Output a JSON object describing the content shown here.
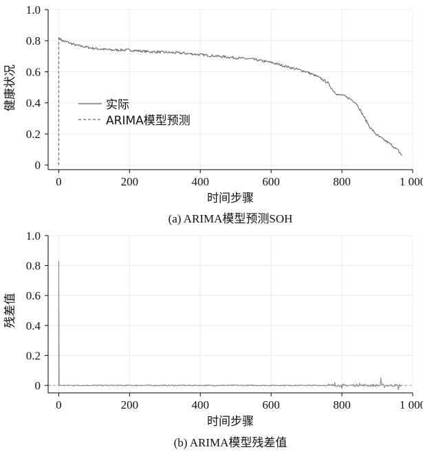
{
  "chart_data": [
    {
      "type": "line",
      "caption": "(a)  ARIMA模型预测SOH",
      "xlabel": "时间步骤",
      "ylabel": "健康状况",
      "xlim": [
        -30,
        1000
      ],
      "ylim": [
        -0.03,
        1.0
      ],
      "xticks": [
        0,
        200,
        400,
        600,
        800,
        1000
      ],
      "xtick_labels": [
        "0",
        "200",
        "400",
        "600",
        "800",
        "1 000"
      ],
      "yticks": [
        0,
        0.2,
        0.4,
        0.6,
        0.8,
        1.0
      ],
      "ytick_labels": [
        "0",
        "0.2",
        "0.4",
        "0.6",
        "0.8",
        "1.0"
      ],
      "grid": true,
      "legend_position": "middle-left",
      "series": [
        {
          "name": "实际",
          "style": "solid",
          "color": "#666666",
          "x": [
            0,
            10,
            25,
            50,
            75,
            100,
            150,
            200,
            250,
            300,
            350,
            400,
            450,
            500,
            550,
            600,
            650,
            700,
            730,
            760,
            775,
            790,
            800,
            820,
            840,
            860,
            880,
            900,
            920,
            940,
            960,
            970
          ],
          "y": [
            0.82,
            0.8,
            0.79,
            0.77,
            0.76,
            0.75,
            0.74,
            0.74,
            0.73,
            0.725,
            0.72,
            0.71,
            0.7,
            0.69,
            0.68,
            0.66,
            0.63,
            0.6,
            0.57,
            0.53,
            0.48,
            0.45,
            0.45,
            0.43,
            0.4,
            0.32,
            0.24,
            0.19,
            0.16,
            0.13,
            0.09,
            0.06
          ]
        },
        {
          "name": "ARIMA模型预测",
          "style": "dashed",
          "color": "#666666",
          "x": [
            0,
            0
          ],
          "y": [
            0.0,
            0.82
          ]
        }
      ]
    },
    {
      "type": "line",
      "caption": "(b)  ARIMA模型残差值",
      "xlabel": "时间步骤",
      "ylabel": "残差值",
      "xlim": [
        -30,
        1000
      ],
      "ylim": [
        -0.05,
        1.0
      ],
      "xticks": [
        0,
        200,
        400,
        600,
        800,
        1000
      ],
      "xtick_labels": [
        "0",
        "200",
        "400",
        "600",
        "800",
        "1 000"
      ],
      "yticks": [
        0,
        0.2,
        0.4,
        0.6,
        0.8,
        1.0
      ],
      "ytick_labels": [
        "0",
        "0.2",
        "0.4",
        "0.6",
        "0.8",
        "1.0"
      ],
      "grid": true,
      "reference_line": {
        "y": 0,
        "style": "dashed"
      },
      "series": [
        {
          "name": "",
          "style": "solid",
          "color": "#888888",
          "x": [
            0,
            1,
            2,
            100,
            200,
            300,
            400,
            500,
            600,
            700,
            780,
            800,
            850,
            900,
            910,
            920,
            960,
            970
          ],
          "y": [
            0.83,
            0.0,
            0.01,
            0.005,
            -0.005,
            0.005,
            0.0,
            0.005,
            -0.005,
            0.005,
            0.02,
            -0.02,
            0.015,
            -0.01,
            0.05,
            -0.015,
            -0.03,
            0.005
          ]
        }
      ]
    }
  ]
}
